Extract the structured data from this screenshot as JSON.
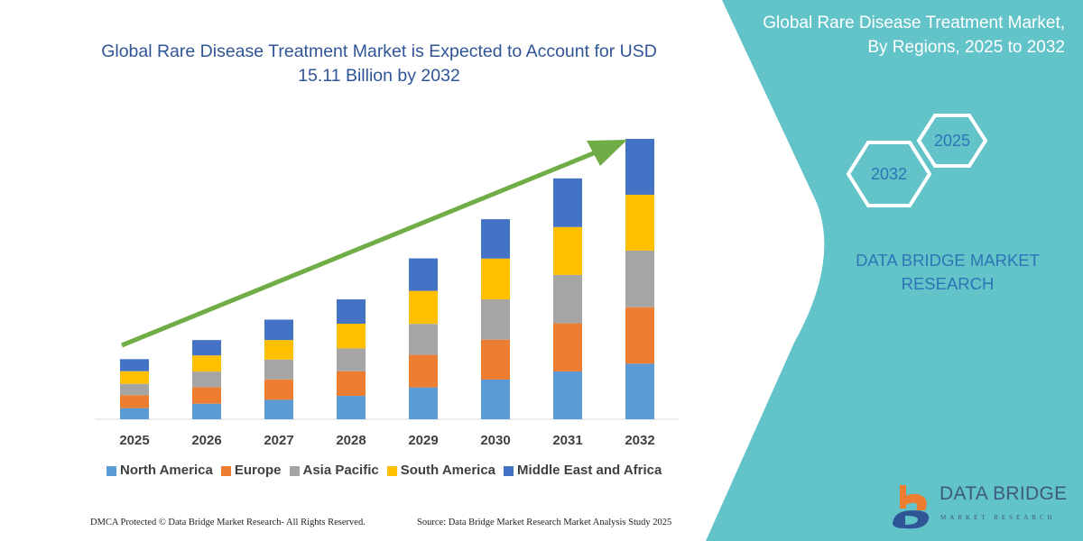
{
  "title": "Global Rare Disease Treatment Market is Expected to Account for USD 15.11 Billion by 2032",
  "side_panel": {
    "title": "Global Rare Disease Treatment Market, By Regions, 2025 to 2032",
    "hex_start": "2025",
    "hex_end": "2032",
    "brand_text": "DATA BRIDGE MARKET RESEARCH",
    "logo_text": "DATA BRIDGE",
    "logo_subtext": "MARKET RESEARCH",
    "background_color": "#62C3C9"
  },
  "footer": {
    "copyright": "DMCA Protected © Data Bridge Market Research-  All Rights Reserved.",
    "source": "Source: Data Bridge Market Research  Market Analysis Study 2025"
  },
  "chart_data": {
    "type": "bar",
    "stacked": true,
    "title": "Global Rare Disease Treatment Market is Expected to Account for USD 15.11 Billion by 2032",
    "xlabel": "",
    "ylabel": "",
    "y_axis_shown": false,
    "grid": false,
    "legend_position": "bottom",
    "trend_arrow": true,
    "trend_arrow_color": "#70AD47",
    "ylim": [
      0,
      15.11
    ],
    "categories": [
      "2025",
      "2026",
      "2027",
      "2028",
      "2029",
      "2030",
      "2031",
      "2032"
    ],
    "series": [
      {
        "name": "North America",
        "color": "#5B9BD5",
        "values": [
          0.6,
          0.84,
          1.05,
          1.26,
          1.72,
          2.14,
          2.58,
          3.0
        ]
      },
      {
        "name": "Europe",
        "color": "#ED7D31",
        "values": [
          0.7,
          0.89,
          1.1,
          1.33,
          1.75,
          2.15,
          2.59,
          3.04
        ]
      },
      {
        "name": "Asia Pacific",
        "color": "#A5A5A5",
        "values": [
          0.61,
          0.84,
          1.07,
          1.23,
          1.67,
          2.17,
          2.61,
          3.05
        ]
      },
      {
        "name": "South America",
        "color": "#FFC000",
        "values": [
          0.68,
          0.87,
          1.05,
          1.33,
          1.78,
          2.2,
          2.58,
          3.01
        ]
      },
      {
        "name": "Middle East and Africa",
        "color": "#4472C4",
        "values": [
          0.65,
          0.83,
          1.1,
          1.31,
          1.75,
          2.12,
          2.62,
          3.01
        ]
      }
    ]
  }
}
